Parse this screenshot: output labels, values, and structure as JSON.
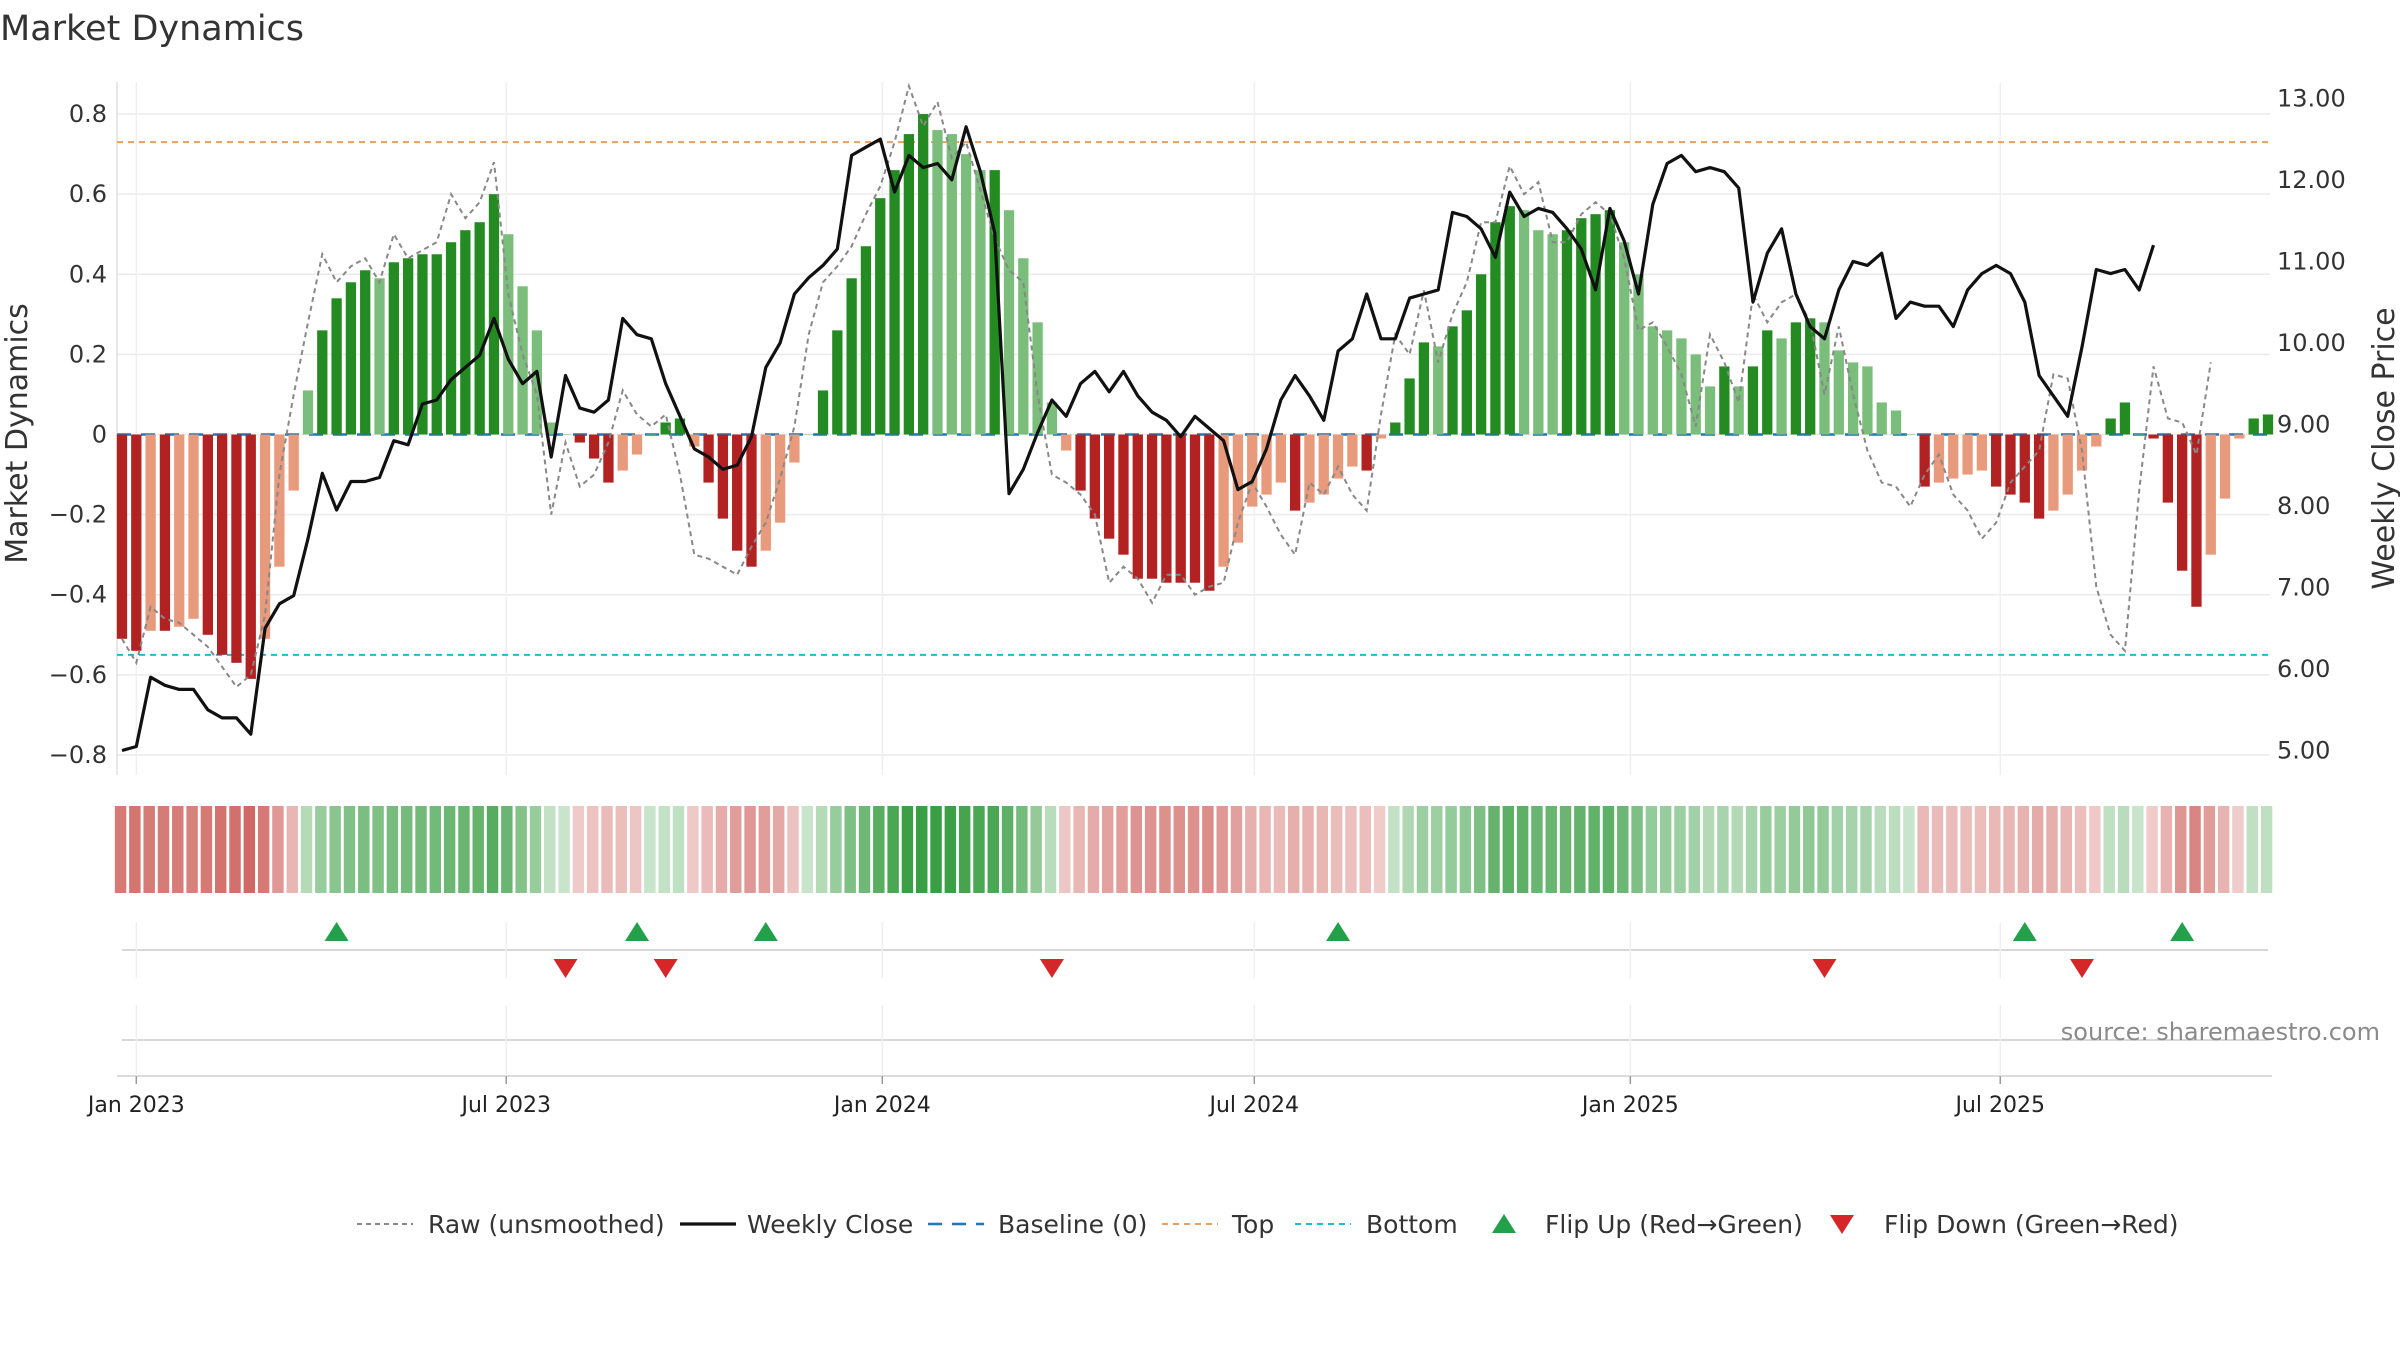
{
  "title": "Market Dynamics",
  "source": "source: sharemaestro.com",
  "chart_data": {
    "type": "bar",
    "x_start": "2022-12-25",
    "x_step_days": 7,
    "left_axis": {
      "label": "Market Dynamics",
      "ylim": [
        -0.85,
        0.88
      ],
      "ticks": [
        "0.8",
        "0.6",
        "0.4",
        "0.2",
        "0",
        "−0.2",
        "−0.4",
        "−0.6",
        "−0.8"
      ],
      "tick_values": [
        0.8,
        0.6,
        0.4,
        0.2,
        0,
        -0.2,
        -0.4,
        -0.6,
        -0.8
      ]
    },
    "right_axis": {
      "label": "Weekly Close Price",
      "ylim": [
        4.7,
        13.2
      ],
      "ticks": [
        "13.00",
        "12.00",
        "11.00",
        "10.00",
        "9.00",
        "8.00",
        "7.00",
        "6.00",
        "5.00"
      ],
      "tick_values": [
        13,
        12,
        11,
        10,
        9,
        8,
        7,
        6,
        5
      ]
    },
    "x_ticks": [
      "Jan 2023",
      "Jul 2023",
      "Jan 2024",
      "Jul 2024",
      "Jan 2025",
      "Jul 2025"
    ],
    "x_tick_dates": [
      "2023-01-01",
      "2023-07-01",
      "2024-01-01",
      "2024-07-01",
      "2025-01-01",
      "2025-07-01"
    ],
    "top_line": 0.73,
    "bottom_line": -0.55,
    "baseline": 0,
    "grid": true,
    "legend_placement": "bottom",
    "legend": [
      "Raw (unsmoothed)",
      "Weekly Close",
      "Baseline (0)",
      "Top",
      "Bottom",
      "Flip Up (Red→Green)",
      "Flip Down (Green→Red)"
    ],
    "colors": {
      "pos_strong": "#238b22",
      "pos_weak": "#7bbd7b",
      "neg_strong": "#b22222",
      "neg_weak": "#e89a7c",
      "close": "#111111",
      "raw": "#888888",
      "baseline": "#1f77b4",
      "top": "#e8a060",
      "bottom": "#17becf",
      "flip_up": "#22a04a",
      "flip_down": "#d62728"
    },
    "bars": [
      -0.51,
      -0.54,
      -0.49,
      -0.49,
      -0.48,
      -0.46,
      -0.5,
      -0.55,
      -0.57,
      -0.61,
      -0.51,
      -0.33,
      -0.14,
      0.11,
      0.26,
      0.34,
      0.38,
      0.41,
      0.39,
      0.43,
      0.44,
      0.45,
      0.45,
      0.48,
      0.51,
      0.53,
      0.6,
      0.5,
      0.37,
      0.26,
      0.03,
      0,
      -0.02,
      -0.06,
      -0.12,
      -0.09,
      -0.05,
      0,
      0.03,
      0.04,
      -0.03,
      -0.12,
      -0.21,
      -0.29,
      -0.33,
      -0.29,
      -0.22,
      -0.07,
      0,
      0.11,
      0.26,
      0.39,
      0.47,
      0.59,
      0.66,
      0.75,
      0.8,
      0.76,
      0.75,
      0.7,
      0.66,
      0.66,
      0.56,
      0.44,
      0.28,
      0.08,
      -0.04,
      -0.14,
      -0.21,
      -0.26,
      -0.3,
      -0.36,
      -0.36,
      -0.37,
      -0.37,
      -0.37,
      -0.39,
      -0.33,
      -0.27,
      -0.18,
      -0.15,
      -0.12,
      -0.19,
      -0.17,
      -0.15,
      -0.11,
      -0.08,
      -0.09,
      -0.01,
      0.03,
      0.14,
      0.23,
      0.22,
      0.27,
      0.31,
      0.4,
      0.53,
      0.57,
      0.56,
      0.51,
      0.5,
      0.51,
      0.54,
      0.55,
      0.56,
      0.48,
      0.4,
      0.27,
      0.26,
      0.24,
      0.2,
      0.12,
      0.17,
      0.12,
      0.17,
      0.26,
      0.24,
      0.28,
      0.29,
      0.28,
      0.21,
      0.18,
      0.17,
      0.08,
      0.06,
      0,
      -0.13,
      -0.12,
      -0.11,
      -0.1,
      -0.09,
      -0.13,
      -0.15,
      -0.17,
      -0.21,
      -0.19,
      -0.15,
      -0.09,
      -0.03,
      0.04,
      0.08,
      0,
      -0.01,
      -0.17,
      -0.34,
      -0.43,
      -0.3,
      -0.16,
      -0.01,
      0.04,
      0.05
    ],
    "raw": [
      -0.51,
      -0.57,
      -0.43,
      -0.46,
      -0.47,
      -0.5,
      -0.53,
      -0.58,
      -0.63,
      -0.6,
      -0.45,
      -0.1,
      0.1,
      0.28,
      0.45,
      0.38,
      0.42,
      0.44,
      0.38,
      0.5,
      0.44,
      0.46,
      0.48,
      0.6,
      0.54,
      0.58,
      0.68,
      0.35,
      0.2,
      0.1,
      -0.2,
      -0.02,
      -0.13,
      -0.1,
      -0.02,
      0.11,
      0.05,
      0.02,
      0.05,
      -0.1,
      -0.3,
      -0.31,
      -0.33,
      -0.35,
      -0.28,
      -0.22,
      -0.11,
      0.02,
      0.25,
      0.38,
      0.42,
      0.47,
      0.55,
      0.62,
      0.73,
      0.87,
      0.77,
      0.83,
      0.69,
      0.73,
      0.61,
      0.49,
      0.41,
      0.38,
      0.1,
      -0.1,
      -0.12,
      -0.15,
      -0.2,
      -0.37,
      -0.33,
      -0.36,
      -0.42,
      -0.35,
      -0.35,
      -0.4,
      -0.38,
      -0.37,
      -0.22,
      -0.12,
      -0.18,
      -0.25,
      -0.3,
      -0.12,
      -0.15,
      -0.08,
      -0.15,
      -0.19,
      0.05,
      0.25,
      0.2,
      0.36,
      0.18,
      0.3,
      0.38,
      0.53,
      0.53,
      0.67,
      0.6,
      0.63,
      0.48,
      0.48,
      0.55,
      0.58,
      0.55,
      0.44,
      0.26,
      0.28,
      0.22,
      0.15,
      0.02,
      0.25,
      0.18,
      0.08,
      0.35,
      0.28,
      0.33,
      0.35,
      0.28,
      0.1,
      0.27,
      0.1,
      -0.04,
      -0.12,
      -0.13,
      -0.18,
      -0.1,
      -0.05,
      -0.15,
      -0.19,
      -0.26,
      -0.22,
      -0.12,
      -0.08,
      -0.04,
      0.15,
      0.14,
      -0.04,
      -0.38,
      -0.5,
      -0.54,
      -0.14,
      0.17,
      0.04,
      0.03,
      -0.05,
      0.18
    ],
    "close": [
      5.0,
      5.05,
      5.9,
      5.8,
      5.75,
      5.75,
      5.5,
      5.4,
      5.4,
      5.2,
      6.5,
      6.8,
      6.9,
      7.6,
      8.4,
      7.95,
      8.3,
      8.3,
      8.35,
      8.8,
      8.75,
      9.25,
      9.3,
      9.55,
      9.7,
      9.85,
      10.3,
      9.8,
      9.5,
      9.65,
      8.6,
      9.6,
      9.2,
      9.15,
      9.3,
      10.3,
      10.1,
      10.05,
      9.5,
      9.1,
      8.7,
      8.6,
      8.45,
      8.5,
      8.85,
      9.7,
      10.0,
      10.6,
      10.8,
      10.95,
      11.15,
      12.3,
      12.4,
      12.5,
      11.85,
      12.3,
      12.15,
      12.2,
      12.0,
      12.65,
      12.1,
      11.35,
      8.15,
      8.45,
      8.9,
      9.3,
      9.1,
      9.5,
      9.65,
      9.4,
      9.65,
      9.35,
      9.15,
      9.05,
      8.85,
      9.1,
      8.95,
      8.8,
      8.2,
      8.3,
      8.7,
      9.3,
      9.6,
      9.35,
      9.05,
      9.9,
      10.05,
      10.6,
      10.05,
      10.05,
      10.55,
      10.6,
      10.65,
      11.6,
      11.55,
      11.4,
      11.05,
      11.85,
      11.55,
      11.65,
      11.6,
      11.4,
      11.15,
      10.65,
      11.65,
      11.25,
      10.6,
      11.7,
      12.2,
      12.3,
      12.1,
      12.15,
      12.1,
      11.9,
      10.5,
      11.1,
      11.4,
      10.6,
      10.2,
      10.05,
      10.65,
      11.0,
      10.95,
      11.1,
      10.3,
      10.5,
      10.45,
      10.45,
      10.2,
      10.65,
      10.85,
      10.95,
      10.85,
      10.5,
      9.6,
      9.35,
      9.1,
      9.95,
      10.9,
      10.85,
      10.9,
      10.65,
      11.2
    ],
    "flip_up": [
      "2023-04-09",
      "2023-09-03",
      "2023-11-05",
      "2024-08-11",
      "2025-07-13",
      "2025-09-28"
    ],
    "flip_down": [
      "2023-07-30",
      "2023-09-17",
      "2024-03-24",
      "2025-04-06",
      "2025-08-10"
    ]
  }
}
